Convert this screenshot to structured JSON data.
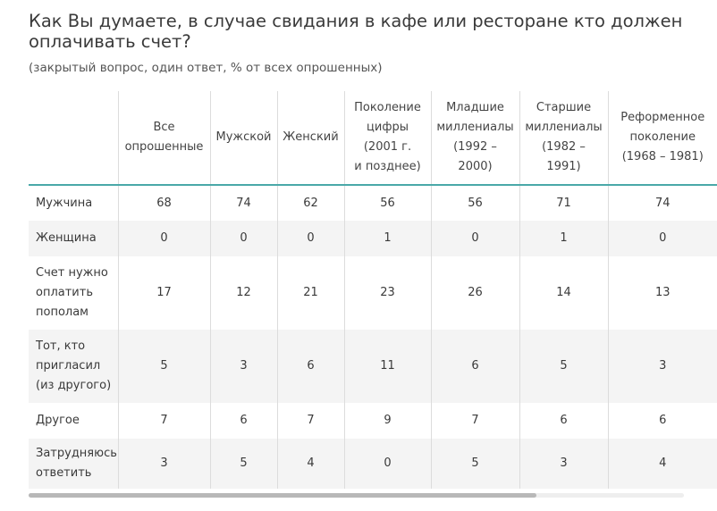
{
  "title": "Как Вы думаете, в случае свидания в кафе или ресторане кто должен оплачивать счет?",
  "subtitle": "(закрытый вопрос, один ответ, % от всех опрошенных)",
  "chart_data": {
    "type": "table",
    "columns": [
      [
        "Все",
        "опрошенные"
      ],
      [
        "Мужской"
      ],
      [
        "Женский"
      ],
      [
        "Поколение",
        "цифры",
        "(2001 г.",
        "и позднее)"
      ],
      [
        "Младшие",
        "миллениалы",
        "(1992 –",
        "2000)"
      ],
      [
        "Старшие",
        "миллениалы",
        "(1982 –",
        "1991)"
      ],
      [
        "Реформенное",
        "поколение",
        "(1968 – 1981)"
      ]
    ],
    "rows": [
      {
        "label": [
          "Мужчина"
        ],
        "values": [
          "68",
          "74",
          "62",
          "56",
          "56",
          "71",
          "74"
        ]
      },
      {
        "label": [
          "Женщина"
        ],
        "values": [
          "0",
          "0",
          "0",
          "1",
          "0",
          "1",
          "0"
        ]
      },
      {
        "label": [
          "Счет нужно",
          "оплатить",
          "пополам"
        ],
        "values": [
          "17",
          "12",
          "21",
          "23",
          "26",
          "14",
          "13"
        ]
      },
      {
        "label": [
          "Тот, кто",
          "пригласил",
          "(из другого)"
        ],
        "values": [
          "5",
          "3",
          "6",
          "11",
          "6",
          "5",
          "3"
        ]
      },
      {
        "label": [
          "Другое"
        ],
        "values": [
          "7",
          "6",
          "7",
          "9",
          "7",
          "6",
          "6"
        ]
      },
      {
        "label": [
          "Затрудняюсь",
          "ответить"
        ],
        "values": [
          "3",
          "5",
          "4",
          "0",
          "5",
          "3",
          "4"
        ]
      }
    ]
  }
}
